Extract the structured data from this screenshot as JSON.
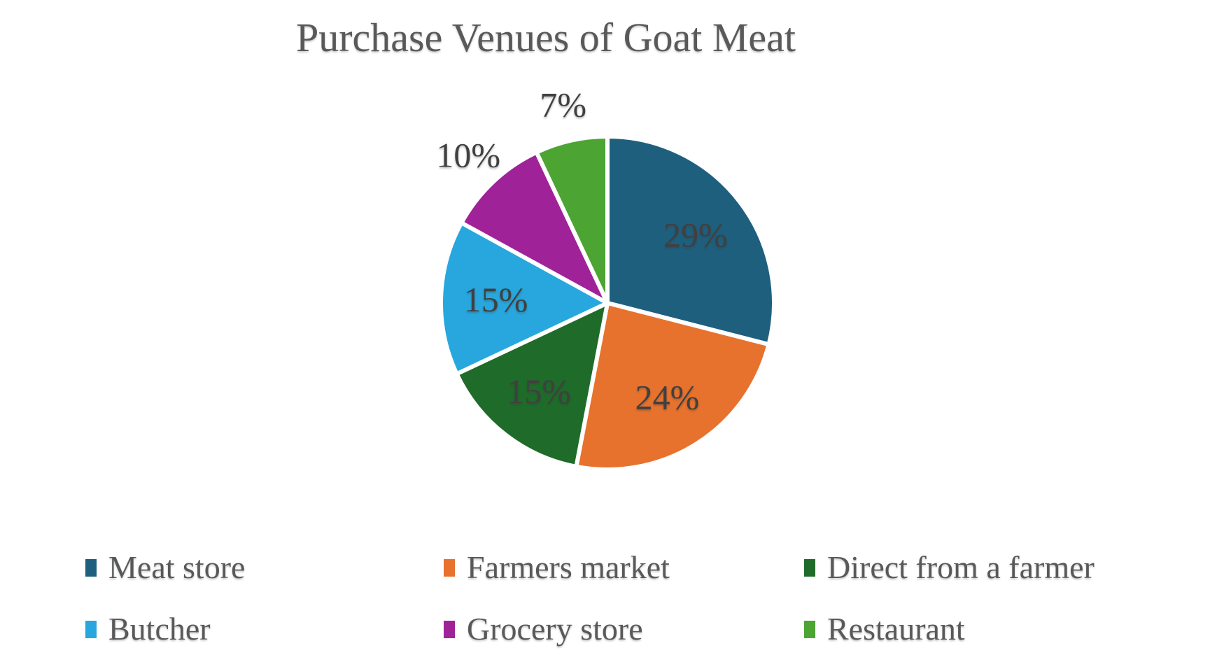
{
  "page": {
    "background_color": "#FFFFFF"
  },
  "chart_data": {
    "type": "pie",
    "title": "Purchase Venues of Goat Meat",
    "categories": [
      "Meat store",
      "Farmers market",
      "Direct from a farmer",
      "Butcher",
      "Grocery store",
      "Restaurant"
    ],
    "values": [
      29,
      24,
      15,
      15,
      10,
      7
    ],
    "unit": "percent",
    "data_labels": [
      "29%",
      "24%",
      "15%",
      "15%",
      "10%",
      "7%"
    ],
    "label_placement": [
      "inside",
      "inside",
      "inside",
      "inside",
      "outside",
      "outside"
    ],
    "colors": [
      "#1E5F7E",
      "#E7722D",
      "#1F6B2A",
      "#27A7DE",
      "#A02299",
      "#4CA433"
    ],
    "start_angle_deg": 0,
    "direction": "clockwise",
    "slice_gap_color": "#FFFFFF",
    "legend_position": "bottom",
    "legend_columns": 3,
    "title_color": "#595959",
    "legend_text_color": "#595959",
    "data_label_color": "#3F3F3F"
  }
}
